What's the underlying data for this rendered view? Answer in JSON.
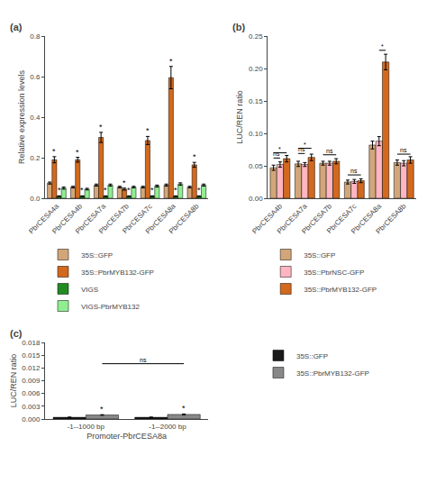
{
  "chart_data": [
    {
      "type": "bar",
      "title": "(a)",
      "categories": [
        "PbrCESA4a",
        "PbrCESA4b",
        "PbrCESA7a",
        "PbrCESA7b",
        "PbrCESA7c",
        "PbrCESA8a",
        "PbrCESA8b"
      ],
      "series": [
        {
          "name": "35S::GFP",
          "color": "#D2A679",
          "values": [
            0.075,
            0.055,
            0.065,
            0.055,
            0.055,
            0.065,
            0.055
          ],
          "errors": [
            0.005,
            0.004,
            0.005,
            0.004,
            0.004,
            0.005,
            0.004
          ]
        },
        {
          "name": "35S::PbrMYB132-GFP",
          "color": "#D2691E",
          "values": [
            0.19,
            0.19,
            0.3,
            0.045,
            0.285,
            0.595,
            0.165
          ],
          "errors": [
            0.015,
            0.012,
            0.025,
            0.005,
            0.02,
            0.055,
            0.012
          ]
        },
        {
          "name": "VIGS",
          "color": "#228B22",
          "values": [
            0.01,
            0.01,
            0.01,
            0.01,
            0.01,
            0.01,
            0.01
          ],
          "errors": [
            0.002,
            0.002,
            0.002,
            0.002,
            0.002,
            0.002,
            0.002
          ]
        },
        {
          "name": "VIGS-PbrMYB132",
          "color": "#90EE90",
          "values": [
            0.05,
            0.045,
            0.065,
            0.055,
            0.06,
            0.07,
            0.065
          ],
          "errors": [
            0.005,
            0.004,
            0.005,
            0.004,
            0.005,
            0.006,
            0.005
          ]
        }
      ],
      "ylabel": "Relative expression levels",
      "ylim": [
        0,
        0.8
      ],
      "yticks": [
        {
          "value": 0,
          "label": "0.0"
        },
        0.2,
        0.4,
        0.6,
        0.8
      ],
      "grid": false,
      "annotations": [
        {
          "text": "*",
          "category": "PbrCESA4a",
          "series": "35S::PbrMYB132-GFP"
        },
        {
          "text": "*",
          "category": "PbrCESA4a",
          "series": "VIGS"
        },
        {
          "text": "*",
          "category": "PbrCESA4b",
          "series": "35S::PbrMYB132-GFP"
        },
        {
          "text": "*",
          "category": "PbrCESA4b",
          "series": "VIGS"
        },
        {
          "text": "*",
          "category": "PbrCESA7a",
          "series": "35S::PbrMYB132-GFP"
        },
        {
          "text": "*",
          "category": "PbrCESA7a",
          "series": "VIGS"
        },
        {
          "text": "*",
          "category": "PbrCESA7b",
          "series": "35S::PbrMYB132-GFP"
        },
        {
          "text": "*",
          "category": "PbrCESA7b",
          "series": "VIGS"
        },
        {
          "text": "*",
          "category": "PbrCESA7c",
          "series": "35S::PbrMYB132-GFP"
        },
        {
          "text": "*",
          "category": "PbrCESA7c",
          "series": "VIGS"
        },
        {
          "text": "*",
          "category": "PbrCESA8a",
          "series": "35S::PbrMYB132-GFP"
        },
        {
          "text": "*",
          "category": "PbrCESA8a",
          "series": "VIGS"
        },
        {
          "text": "*",
          "category": "PbrCESA8b",
          "series": "35S::PbrMYB132-GFP"
        },
        {
          "text": "*",
          "category": "PbrCESA8b",
          "series": "VIGS"
        }
      ]
    },
    {
      "type": "bar",
      "title": "(b)",
      "categories": [
        "PbrCESA4b",
        "PbrCESA7a",
        "PbrCESA7b",
        "PbrCESA7c",
        "PbrCESA8a",
        "PbrCESA8b"
      ],
      "series": [
        {
          "name": "35S::GFP",
          "color": "#D2A679",
          "values": [
            0.047,
            0.053,
            0.054,
            0.025,
            0.082,
            0.055
          ],
          "errors": [
            0.004,
            0.004,
            0.003,
            0.003,
            0.006,
            0.004
          ]
        },
        {
          "name": "35S::PbrNSC-GFP",
          "color": "#FFB6C1",
          "values": [
            0.052,
            0.052,
            0.054,
            0.026,
            0.088,
            0.054
          ],
          "errors": [
            0.004,
            0.003,
            0.003,
            0.003,
            0.007,
            0.004
          ]
        },
        {
          "name": "35S::PbrMYB132-GFP",
          "color": "#D2691E",
          "values": [
            0.061,
            0.063,
            0.057,
            0.027,
            0.21,
            0.059
          ],
          "errors": [
            0.005,
            0.005,
            0.004,
            0.003,
            0.012,
            0.005
          ]
        }
      ],
      "ylabel": "LUC/REN ratio",
      "ylim": [
        0,
        0.25
      ],
      "yticks": [
        {
          "value": 0,
          "label": "0.00"
        },
        0.05,
        {
          "value": 0.1,
          "label": "0.10"
        },
        0.15,
        {
          "value": 0.2,
          "label": "0.20"
        },
        0.25
      ],
      "grid": false,
      "annotations": [
        {
          "text": "ns",
          "start": [
            "PbrCESA4b",
            "35S::GFP"
          ],
          "end": [
            "PbrCESA4b",
            "35S::PbrNSC-GFP"
          ],
          "y": 0.062
        },
        {
          "text": "*",
          "start": [
            "PbrCESA4b",
            "35S::GFP"
          ],
          "end": [
            "PbrCESA4b",
            "35S::PbrMYB132-GFP"
          ],
          "y": 0.07
        },
        {
          "text": "ns",
          "start": [
            "PbrCESA7a",
            "35S::GFP"
          ],
          "end": [
            "PbrCESA7a",
            "35S::PbrNSC-GFP"
          ],
          "y": 0.069
        },
        {
          "text": "*",
          "start": [
            "PbrCESA7a",
            "35S::GFP"
          ],
          "end": [
            "PbrCESA7a",
            "35S::PbrMYB132-GFP"
          ],
          "y": 0.077
        },
        {
          "text": "ns",
          "start": [
            "PbrCESA7b",
            "35S::GFP"
          ],
          "end": [
            "PbrCESA7b",
            "35S::PbrMYB132-GFP"
          ],
          "y": 0.067
        },
        {
          "text": "ns",
          "start": [
            "PbrCESA7c",
            "35S::GFP"
          ],
          "end": [
            "PbrCESA7c",
            "35S::PbrMYB132-GFP"
          ],
          "y": 0.036
        },
        {
          "text": "*",
          "start": [
            "PbrCESA8a",
            "35S::PbrNSC-GFP"
          ],
          "end": [
            "PbrCESA8a",
            "35S::PbrMYB132-GFP"
          ],
          "y": 0.228
        },
        {
          "text": "ns",
          "start": [
            "PbrCESA8b",
            "35S::GFP"
          ],
          "end": [
            "PbrCESA8b",
            "35S::PbrMYB132-GFP"
          ],
          "y": 0.068
        }
      ]
    },
    {
      "type": "bar",
      "title": "(c)",
      "categories": [
        "-1--1000 bp",
        "-1--2000 bp"
      ],
      "series": [
        {
          "name": "35S::GFP",
          "color": "#1a1a1a",
          "values": [
            0.0004,
            0.0004
          ],
          "errors": [
            5e-05,
            5e-05
          ]
        },
        {
          "name": "35S::PbrMYB132-GFP",
          "color": "#888888",
          "values": [
            0.00095,
            0.00108
          ],
          "errors": [
            7e-05,
            0.0001
          ]
        }
      ],
      "xlabel": "Promoter-PbrCESA8a",
      "ylabel": "LUC/REN ratio",
      "ylim": [
        0,
        0.018
      ],
      "yticks": [
        {
          "value": 0,
          "label": "0.000"
        },
        0.003,
        0.006,
        0.009,
        0.012,
        0.015,
        0.018
      ],
      "grid": false,
      "annotations": [
        {
          "text": "*",
          "category": "-1--1000 bp",
          "series": "35S::PbrMYB132-GFP"
        },
        {
          "text": "*",
          "category": "-1--2000 bp",
          "series": "35S::PbrMYB132-GFP"
        },
        {
          "text": "ns",
          "start": [
            "-1--1000 bp",
            "35S::PbrMYB132-GFP"
          ],
          "end": [
            "-1--2000 bp",
            "35S::PbrMYB132-GFP"
          ],
          "y": 0.013
        }
      ]
    }
  ]
}
